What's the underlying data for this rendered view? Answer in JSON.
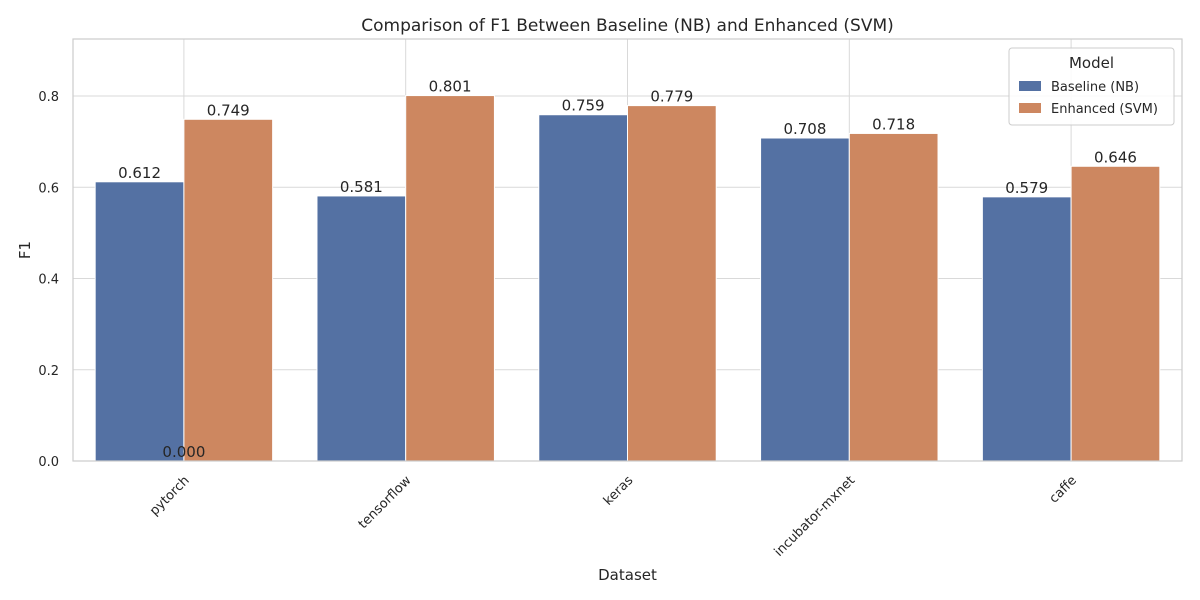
{
  "chart_data": {
    "type": "bar",
    "title": "Comparison of F1 Between Baseline (NB) and Enhanced (SVM)",
    "xlabel": "Dataset",
    "ylabel": "F1",
    "categories": [
      "pytorch",
      "tensorflow",
      "keras",
      "incubator-mxnet",
      "caffe"
    ],
    "series": [
      {
        "name": "Baseline (NB)",
        "values": [
          0.612,
          0.581,
          0.759,
          0.708,
          0.579
        ],
        "color": "#5471a3"
      },
      {
        "name": "Enhanced (SVM)",
        "values": [
          0.749,
          0.801,
          0.779,
          0.718,
          0.646
        ],
        "color": "#cd8760"
      }
    ],
    "data_labels": [
      [
        "0.612",
        "0.581",
        "0.759",
        "0.708",
        "0.579"
      ],
      [
        "0.749",
        "0.801",
        "0.779",
        "0.718",
        "0.646"
      ]
    ],
    "extra_annotation": {
      "text": "0.000",
      "category": "pytorch",
      "value": 0
    },
    "yticks": [
      0.0,
      0.2,
      0.4,
      0.6,
      0.8
    ],
    "ytick_labels": [
      "0.0",
      "0.2",
      "0.4",
      "0.6",
      "0.8"
    ],
    "ylim": [
      0,
      0.925
    ],
    "grid": true,
    "legend": {
      "title": "Model",
      "placement": "top-right"
    },
    "xtick_rotation": 45
  }
}
